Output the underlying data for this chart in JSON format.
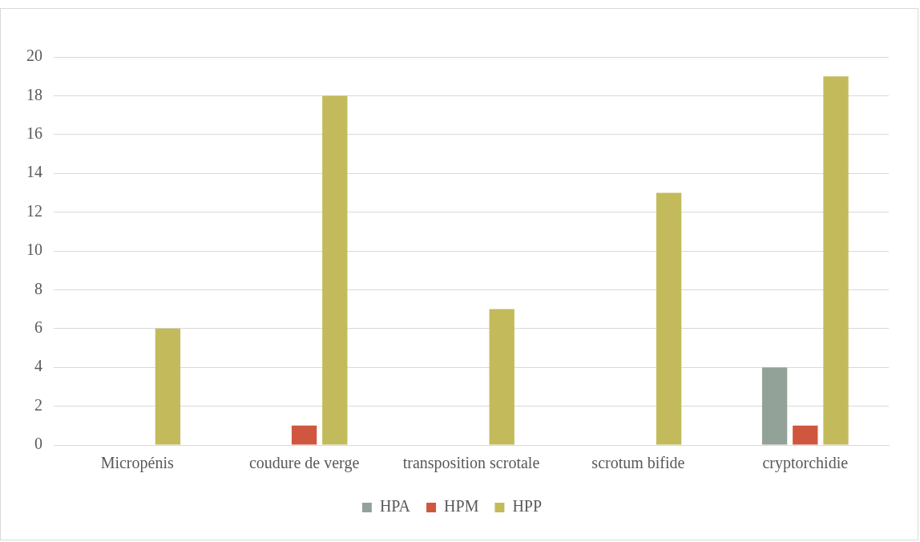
{
  "chart_data": {
    "type": "bar",
    "categories": [
      "Micropénis",
      "coudure de verge",
      "transposition scrotale",
      "scrotum bifide",
      "cryptorchidie"
    ],
    "series": [
      {
        "name": "HPA",
        "color": "#93a299",
        "values": [
          0,
          0,
          0,
          0,
          4
        ]
      },
      {
        "name": "HPM",
        "color": "#d0573f",
        "values": [
          0,
          1,
          0,
          0,
          1
        ]
      },
      {
        "name": "HPP",
        "color": "#c3bb5b",
        "values": [
          6,
          18,
          7,
          13,
          19
        ]
      }
    ],
    "ylim": [
      0,
      20
    ],
    "yticks": [
      0,
      2,
      4,
      6,
      8,
      10,
      12,
      14,
      16,
      18,
      20
    ],
    "grid": "y",
    "legend": "bottom"
  }
}
